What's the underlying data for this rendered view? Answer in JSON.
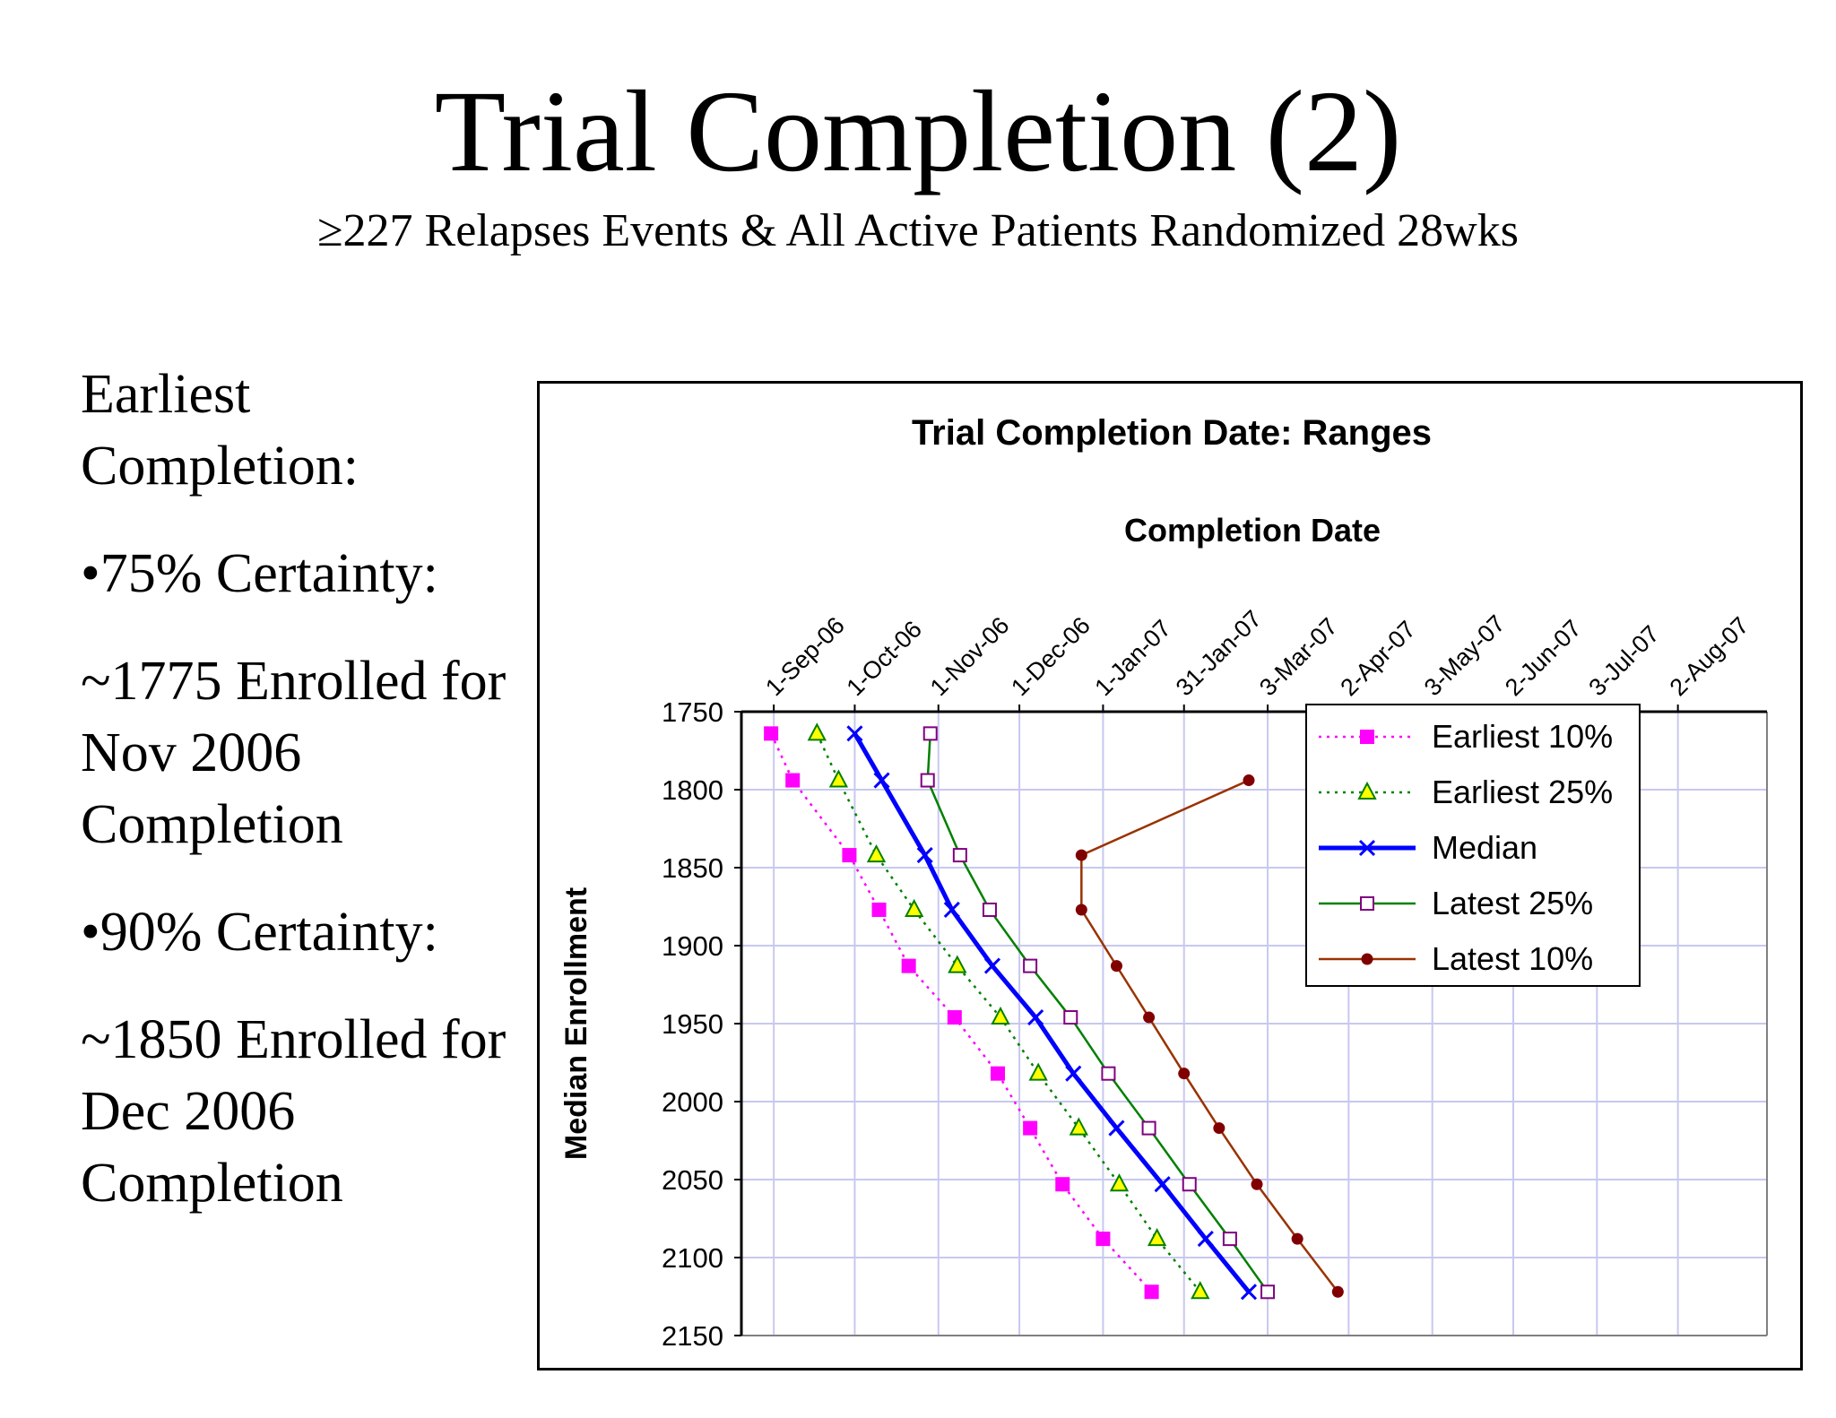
{
  "slide": {
    "title": "Trial Completion (2)",
    "subtitle": "≥227 Relapses Events & All Active Patients Randomized 28wks"
  },
  "left_text": {
    "heading_line1": "Earliest",
    "heading_line2": "Completion:",
    "bullet1": "•75% Certainty:",
    "note1_line1": "~1775 Enrolled for",
    "note1_line2": "Nov 2006",
    "note1_line3": "Completion",
    "bullet2": "•90% Certainty:",
    "note2_line1": "~1850 Enrolled for",
    "note2_line2": "Dec 2006",
    "note2_line3": "Completion"
  },
  "chart_data": {
    "type": "line",
    "title": "Trial Completion Date: Ranges",
    "xlabel": "Completion Date",
    "ylabel": "Median Enrollment",
    "x_axis": "date",
    "x_ticks": [
      "1-Sep-06",
      "1-Oct-06",
      "1-Nov-06",
      "1-Dec-06",
      "1-Jan-07",
      "31-Jan-07",
      "3-Mar-07",
      "2-Apr-07",
      "3-May-07",
      "2-Jun-07",
      "3-Jul-07",
      "2-Aug-07"
    ],
    "xlim": [
      "2006-08-20",
      "2007-09-04"
    ],
    "y_ticks": [
      1750,
      1800,
      1850,
      1900,
      1950,
      2000,
      2050,
      2100,
      2150
    ],
    "ylim": [
      1750,
      2150
    ],
    "y_reversed": true,
    "grid": true,
    "legend_position": "top-right, inside plot",
    "series": [
      {
        "name": "Earliest 10%",
        "color": "#ff00ff",
        "line": "dotted",
        "marker": "square-filled",
        "points": [
          {
            "x": "2006-08-31",
            "y": 1764
          },
          {
            "x": "2006-09-08",
            "y": 1794
          },
          {
            "x": "2006-09-29",
            "y": 1842
          },
          {
            "x": "2006-10-10",
            "y": 1877
          },
          {
            "x": "2006-10-21",
            "y": 1913
          },
          {
            "x": "2006-11-07",
            "y": 1946
          },
          {
            "x": "2006-11-23",
            "y": 1982
          },
          {
            "x": "2006-12-05",
            "y": 2017
          },
          {
            "x": "2006-12-17",
            "y": 2053
          },
          {
            "x": "2007-01-01",
            "y": 2088
          },
          {
            "x": "2007-01-19",
            "y": 2122
          }
        ]
      },
      {
        "name": "Earliest 25%",
        "color": "#008000",
        "marker_fill": "#ffff00",
        "line": "dotted",
        "marker": "triangle",
        "points": [
          {
            "x": "2006-09-17",
            "y": 1764
          },
          {
            "x": "2006-09-25",
            "y": 1794
          },
          {
            "x": "2006-10-09",
            "y": 1842
          },
          {
            "x": "2006-10-23",
            "y": 1877
          },
          {
            "x": "2006-11-08",
            "y": 1913
          },
          {
            "x": "2006-11-24",
            "y": 1946
          },
          {
            "x": "2006-12-08",
            "y": 1982
          },
          {
            "x": "2006-12-23",
            "y": 2017
          },
          {
            "x": "2007-01-07",
            "y": 2053
          },
          {
            "x": "2007-01-21",
            "y": 2088
          },
          {
            "x": "2007-02-06",
            "y": 2122
          }
        ]
      },
      {
        "name": "Median",
        "color": "#0000ff",
        "line": "solid-bold",
        "marker": "x",
        "points": [
          {
            "x": "2006-10-01",
            "y": 1764
          },
          {
            "x": "2006-10-11",
            "y": 1794
          },
          {
            "x": "2006-10-27",
            "y": 1842
          },
          {
            "x": "2006-11-06",
            "y": 1877
          },
          {
            "x": "2006-11-21",
            "y": 1913
          },
          {
            "x": "2006-12-07",
            "y": 1946
          },
          {
            "x": "2006-12-21",
            "y": 1982
          },
          {
            "x": "2007-01-06",
            "y": 2017
          },
          {
            "x": "2007-01-23",
            "y": 2053
          },
          {
            "x": "2007-02-08",
            "y": 2088
          },
          {
            "x": "2007-02-24",
            "y": 2122
          }
        ]
      },
      {
        "name": "Latest 25%",
        "color": "#008000",
        "marker_color": "#800080",
        "line": "solid",
        "marker": "square-open",
        "points": [
          {
            "x": "2006-10-29",
            "y": 1764
          },
          {
            "x": "2006-10-28",
            "y": 1794
          },
          {
            "x": "2006-11-09",
            "y": 1842
          },
          {
            "x": "2006-11-20",
            "y": 1877
          },
          {
            "x": "2006-12-05",
            "y": 1913
          },
          {
            "x": "2006-12-20",
            "y": 1946
          },
          {
            "x": "2007-01-03",
            "y": 1982
          },
          {
            "x": "2007-01-18",
            "y": 2017
          },
          {
            "x": "2007-02-02",
            "y": 2053
          },
          {
            "x": "2007-02-17",
            "y": 2088
          },
          {
            "x": "2007-03-03",
            "y": 2122
          }
        ]
      },
      {
        "name": "Latest 10%",
        "color": "#993300",
        "marker_color": "#800000",
        "line": "solid",
        "marker": "circle-filled",
        "points": [
          {
            "x": "2007-02-24",
            "y": 1794
          },
          {
            "x": "2006-12-24",
            "y": 1842
          },
          {
            "x": "2006-12-24",
            "y": 1877
          },
          {
            "x": "2007-01-06",
            "y": 1913
          },
          {
            "x": "2007-01-18",
            "y": 1946
          },
          {
            "x": "2007-01-31",
            "y": 1982
          },
          {
            "x": "2007-02-13",
            "y": 2017
          },
          {
            "x": "2007-02-27",
            "y": 2053
          },
          {
            "x": "2007-03-14",
            "y": 2088
          },
          {
            "x": "2007-03-29",
            "y": 2122
          }
        ]
      }
    ]
  }
}
